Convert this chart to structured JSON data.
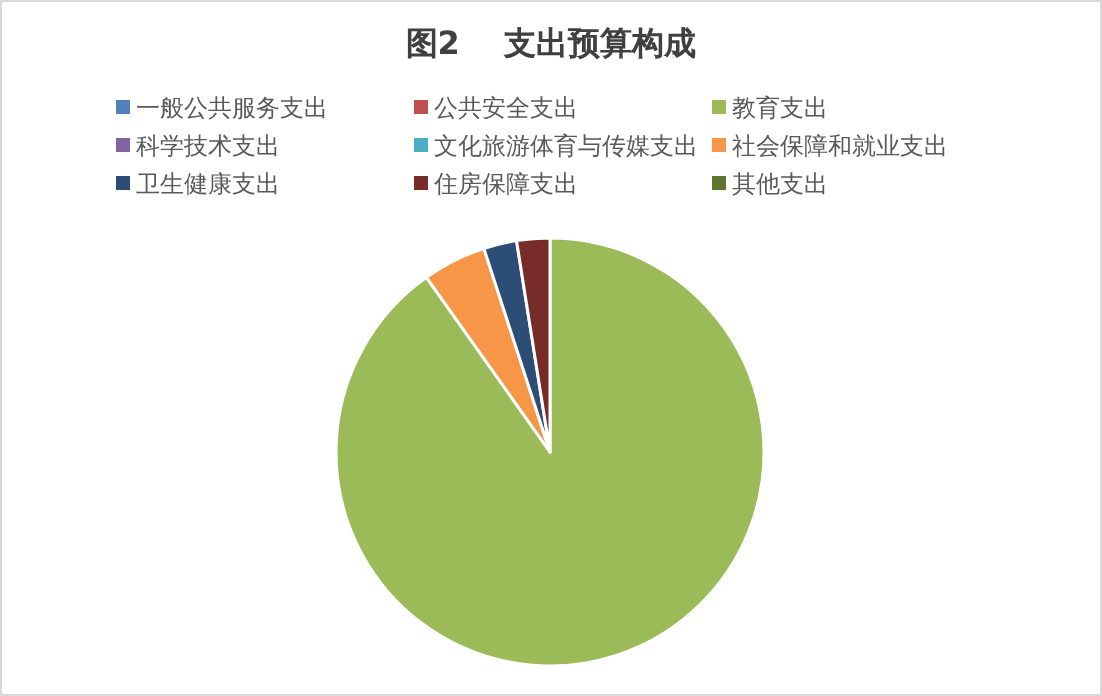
{
  "chart_data": {
    "type": "pie",
    "title": "图2    支出预算构成",
    "categories": [
      "一般公共服务支出",
      "公共安全支出",
      "教育支出",
      "科学技术支出",
      "文化旅游体育与传媒支出",
      "社会保障和就业支出",
      "卫生健康支出",
      "住房保障支出",
      "其他支出"
    ],
    "values": [
      0,
      0,
      90.2,
      0,
      0,
      4.8,
      2.5,
      2.5,
      0
    ],
    "colors": [
      "#4f81bd",
      "#c0504d",
      "#9bbb59",
      "#8064a2",
      "#4bacc6",
      "#f79646",
      "#2c4d75",
      "#772c2a",
      "#5f7530"
    ],
    "legend": "top"
  }
}
